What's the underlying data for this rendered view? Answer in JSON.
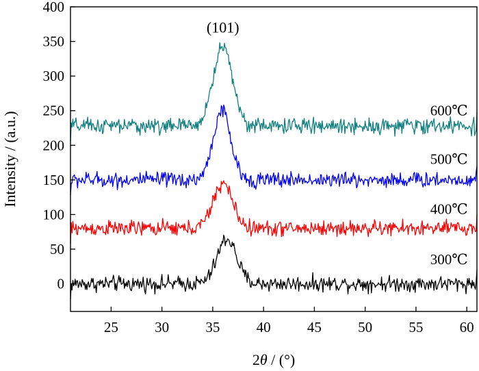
{
  "chart_data": {
    "type": "line",
    "xlabel_prefix": "2",
    "xlabel_symbol": "θ",
    "xlabel_suffix": " / (°)",
    "ylabel": "Intensity / (a.u.)",
    "xlim": [
      21,
      61
    ],
    "ylim": [
      -40,
      400
    ],
    "xticks": [
      25,
      30,
      35,
      40,
      45,
      50,
      55,
      60
    ],
    "yticks": [
      0,
      50,
      100,
      150,
      200,
      250,
      300,
      350,
      400
    ],
    "grid": false,
    "legend": "none",
    "annotations": [
      {
        "text": "(101)",
        "x": 36,
        "y": 370
      }
    ],
    "series": [
      {
        "name": "300℃",
        "color": "#000000",
        "baseline": 0,
        "peak_center": 36.4,
        "peak_height": 65,
        "peak_width": 0.95,
        "label_x": 56.4,
        "label_y": 35
      },
      {
        "name": "400℃",
        "color": "#ff0000",
        "baseline": 80,
        "peak_center": 36.0,
        "peak_height": 65,
        "peak_width": 0.95,
        "label_x": 56.4,
        "label_y": 108
      },
      {
        "name": "500℃",
        "color": "#0000ff",
        "baseline": 150,
        "peak_center": 35.9,
        "peak_height": 100,
        "peak_width": 0.85,
        "label_x": 56.4,
        "label_y": 180
      },
      {
        "name": "600℃",
        "color": "#0f7f7f",
        "baseline": 228,
        "peak_center": 36.0,
        "peak_height": 115,
        "peak_width": 0.95,
        "label_x": 56.4,
        "label_y": 250
      }
    ]
  }
}
